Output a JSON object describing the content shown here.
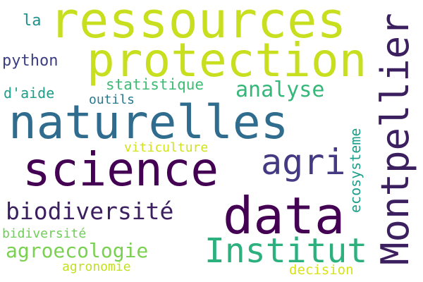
{
  "words": [
    {
      "text": "ressources",
      "color": "#c8df1f"
    },
    {
      "text": "protection",
      "color": "#c8df1f"
    },
    {
      "text": "naturelles",
      "color": "#2f6c8e"
    },
    {
      "text": "science",
      "color": "#440154"
    },
    {
      "text": "data",
      "color": "#440154"
    },
    {
      "text": "Montpellier",
      "color": "#3b1f5e"
    },
    {
      "text": "Institut",
      "color": "#2cb17e"
    },
    {
      "text": "agri",
      "color": "#443983"
    },
    {
      "text": "biodiversité",
      "color": "#3b1f5e"
    },
    {
      "text": "analyse",
      "color": "#35b779"
    },
    {
      "text": "agroecologie",
      "color": "#7ad151"
    },
    {
      "text": "statistique",
      "color": "#3fbc73"
    },
    {
      "text": "python",
      "color": "#3b3f82"
    },
    {
      "text": "outils",
      "color": "#2a788e"
    },
    {
      "text": "d'aide",
      "color": "#1f9e89"
    },
    {
      "text": "la",
      "color": "#21918c"
    },
    {
      "text": "viticulture",
      "color": "#d2e21b"
    },
    {
      "text": "ecosysteme",
      "color": "#1f9e89"
    },
    {
      "text": "bidiversité",
      "color": "#6ece58"
    },
    {
      "text": "agronomie",
      "color": "#c2df23"
    },
    {
      "text": "decision",
      "color": "#d8e219"
    }
  ]
}
